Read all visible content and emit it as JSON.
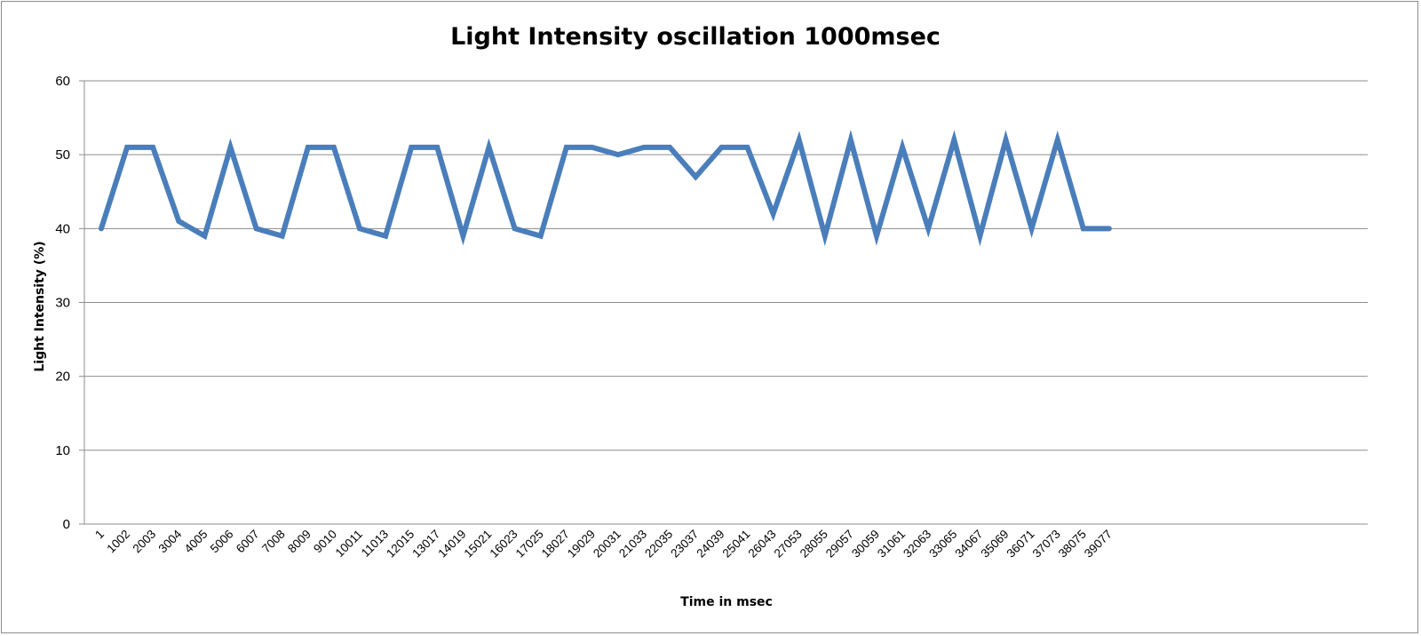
{
  "chart_data": {
    "type": "line",
    "title": "Light Intensity oscillation 1000msec",
    "xlabel": "Time in msec",
    "ylabel": "Light Intensity (%)",
    "ylim": [
      0,
      60
    ],
    "yticks": [
      0,
      10,
      20,
      30,
      40,
      50,
      60
    ],
    "grid": true,
    "legend": "none",
    "line_color": "#4a7ebb",
    "x": [
      "1",
      "1002",
      "2003",
      "3004",
      "4005",
      "5006",
      "6007",
      "7008",
      "8009",
      "9010",
      "10011",
      "11013",
      "12015",
      "13017",
      "14019",
      "15021",
      "16023",
      "17025",
      "18027",
      "19029",
      "20031",
      "21033",
      "22035",
      "23037",
      "24039",
      "25041",
      "26043",
      "27053",
      "28055",
      "29057",
      "30059",
      "31061",
      "32063",
      "33065",
      "34067",
      "35069",
      "36071",
      "37073",
      "38075",
      "39077"
    ],
    "series": [
      {
        "values": [
          40,
          51,
          51,
          41,
          39,
          51,
          40,
          39,
          51,
          51,
          40,
          39,
          51,
          51,
          39,
          51,
          40,
          39,
          51,
          51,
          50,
          51,
          51,
          47,
          51,
          51,
          42,
          52,
          39,
          52,
          39,
          51,
          40,
          52,
          39,
          52,
          40,
          52,
          40,
          40
        ]
      }
    ]
  }
}
